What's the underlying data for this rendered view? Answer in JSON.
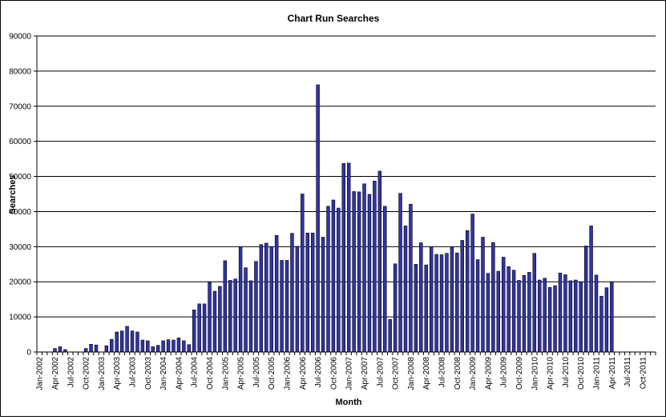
{
  "chart_data": {
    "type": "bar",
    "title": "Chart Run  Searches",
    "xlabel": "Month",
    "ylabel": "Searches",
    "ylim": [
      0,
      90000
    ],
    "yticks": [
      "0",
      "10000",
      "20000",
      "30000",
      "40000",
      "50000",
      "60000",
      "70000",
      "80000",
      "90000"
    ],
    "grid": "horizontal",
    "bar_color": "#3333aa",
    "categories": [
      "Jan-2002",
      "Feb-2002",
      "Mar-2002",
      "Apr-2002",
      "May-2002",
      "Jun-2002",
      "Jul-2002",
      "Aug-2002",
      "Sep-2002",
      "Oct-2002",
      "Nov-2002",
      "Dec-2002",
      "Jan-2003",
      "Feb-2003",
      "Mar-2003",
      "Apr-2003",
      "May-2003",
      "Jun-2003",
      "Jul-2003",
      "Aug-2003",
      "Sep-2003",
      "Oct-2003",
      "Nov-2003",
      "Dec-2003",
      "Jan-2004",
      "Feb-2004",
      "Mar-2004",
      "Apr-2004",
      "May-2004",
      "Jun-2004",
      "Jul-2004",
      "Aug-2004",
      "Sep-2004",
      "Oct-2004",
      "Nov-2004",
      "Dec-2004",
      "Jan-2005",
      "Feb-2005",
      "Mar-2005",
      "Apr-2005",
      "May-2005",
      "Jun-2005",
      "Jul-2005",
      "Aug-2005",
      "Sep-2005",
      "Oct-2005",
      "Nov-2005",
      "Dec-2005",
      "Jan-2006",
      "Feb-2006",
      "Mar-2006",
      "Apr-2006",
      "May-2006",
      "Jun-2006",
      "Jul-2006",
      "Aug-2006",
      "Sep-2006",
      "Oct-2006",
      "Nov-2006",
      "Dec-2006",
      "Jan-2007",
      "Feb-2007",
      "Mar-2007",
      "Apr-2007",
      "May-2007",
      "Jun-2007",
      "Jul-2007",
      "Aug-2007",
      "Sep-2007",
      "Oct-2007",
      "Nov-2007",
      "Dec-2007",
      "Jan-2008",
      "Feb-2008",
      "Mar-2008",
      "Apr-2008",
      "May-2008",
      "Jun-2008",
      "Jul-2008",
      "Aug-2008",
      "Sep-2008",
      "Oct-2008",
      "Nov-2008",
      "Dec-2008",
      "Jan-2009",
      "Feb-2009",
      "Mar-2009",
      "Apr-2009",
      "May-2009",
      "Jun-2009",
      "Jul-2009",
      "Aug-2009",
      "Sep-2009",
      "Oct-2009",
      "Nov-2009",
      "Dec-2009",
      "Jan-2010",
      "Feb-2010",
      "Mar-2010",
      "Apr-2010",
      "May-2010",
      "Jun-2010",
      "Jul-2010",
      "Aug-2010",
      "Sep-2010",
      "Oct-2010",
      "Nov-2010",
      "Dec-2010",
      "Jan-2011",
      "Feb-2011",
      "Mar-2011",
      "Apr-2011",
      "May-2011",
      "Jun-2011",
      "Jul-2011",
      "Aug-2011",
      "Sep-2011",
      "Oct-2011",
      "Nov-2011",
      "Dec-2011"
    ],
    "category_labels_shown_every": 3,
    "values": [
      0,
      0,
      0,
      1000,
      1500,
      700,
      0,
      0,
      0,
      1000,
      2200,
      2000,
      0,
      1800,
      3600,
      5700,
      6000,
      7300,
      6000,
      5700,
      3400,
      3200,
      1500,
      1900,
      3200,
      3500,
      3400,
      4000,
      3200,
      2100,
      12000,
      13700,
      13700,
      19900,
      17300,
      18700,
      26000,
      20400,
      20800,
      30000,
      24000,
      20300,
      25800,
      30600,
      31000,
      30000,
      33200,
      26100,
      26100,
      33800,
      30100,
      45000,
      33900,
      33900,
      76100,
      32700,
      41500,
      43300,
      41000,
      53700,
      53800,
      45700,
      45600,
      47900,
      44900,
      48700,
      51500,
      41500,
      9300,
      25100,
      45200,
      35900,
      42100,
      25000,
      31100,
      24800,
      30000,
      27800,
      27700,
      28100,
      30000,
      28200,
      31800,
      34600,
      39300,
      26300,
      32700,
      22400,
      31200,
      23000,
      27000,
      24300,
      23300,
      20400,
      21800,
      22700,
      28100,
      20500,
      21000,
      18400,
      18900,
      22500,
      22000,
      20300,
      20500,
      20000,
      30200,
      35900,
      21900,
      15900,
      18300,
      20000,
      0,
      0,
      0,
      0,
      0,
      0,
      0,
      0
    ]
  }
}
